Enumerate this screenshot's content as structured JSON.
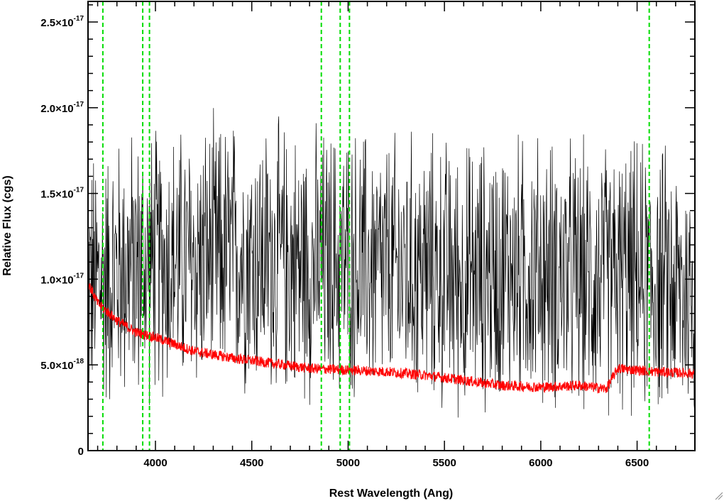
{
  "chart_data": {
    "type": "line",
    "title": "",
    "xlabel": "Rest Wavelength (Ang)",
    "ylabel": "Relative Flux (cgs)",
    "xlim": [
      3650,
      6800
    ],
    "ylim": [
      0,
      2.62e-17
    ],
    "x_ticks": [
      {
        "value": 4000,
        "label": "4000"
      },
      {
        "value": 4500,
        "label": "4500"
      },
      {
        "value": 5000,
        "label": "5000"
      },
      {
        "value": 5500,
        "label": "5500"
      },
      {
        "value": 6000,
        "label": "6000"
      },
      {
        "value": 6500,
        "label": "6500"
      }
    ],
    "y_ticks": [
      {
        "value": 0,
        "mantissa": "0",
        "exponent": ""
      },
      {
        "value": 5e-18,
        "mantissa": "5.0×10",
        "exponent": "-18"
      },
      {
        "value": 1e-17,
        "mantissa": "1.0×10",
        "exponent": "-17"
      },
      {
        "value": 1.5e-17,
        "mantissa": "1.5×10",
        "exponent": "-17"
      },
      {
        "value": 2e-17,
        "mantissa": "2.0×10",
        "exponent": "-17"
      },
      {
        "value": 2.5e-17,
        "mantissa": "2.5×10",
        "exponent": "-17"
      }
    ],
    "grid": false,
    "vlines": [
      {
        "x": 3727,
        "style": "dashed",
        "color": "#00dd00"
      },
      {
        "x": 3934,
        "style": "dashed",
        "color": "#00dd00"
      },
      {
        "x": 3969,
        "style": "dashed",
        "color": "#00dd00"
      },
      {
        "x": 4861,
        "style": "dashed",
        "color": "#00dd00"
      },
      {
        "x": 4959,
        "style": "dashed",
        "color": "#00dd00"
      },
      {
        "x": 5007,
        "style": "dashed",
        "color": "#00dd00"
      },
      {
        "x": 6563,
        "style": "dashed",
        "color": "#00dd00"
      }
    ],
    "series": [
      {
        "color": "#000000",
        "style": "noisy spectrum",
        "x": [
          3650,
          3800,
          4000,
          4200,
          4400,
          4600,
          4800,
          5000,
          5200,
          5400,
          5600,
          5800,
          6000,
          6200,
          6400,
          6600,
          6800
        ],
        "y": [
          9.5e-18,
          1.05e-17,
          1.1e-17,
          1.1e-17,
          1.15e-17,
          1.12e-17,
          1.08e-17,
          1.1e-17,
          1.05e-17,
          1.05e-17,
          1e-17,
          1.05e-17,
          1.05e-17,
          1e-17,
          1e-17,
          1e-17,
          9e-18
        ]
      },
      {
        "color": "#ff0000",
        "style": "error spectrum",
        "x": [
          3650,
          3700,
          3800,
          3900,
          4000,
          4200,
          4400,
          4600,
          4800,
          5000,
          5200,
          5400,
          5600,
          5800,
          6000,
          6200,
          6340,
          6400,
          6600,
          6800
        ],
        "y": [
          9.8e-18,
          8.6e-18,
          7.6e-18,
          6.9e-18,
          6.6e-18,
          5.8e-18,
          5.4e-18,
          5.1e-18,
          4.8e-18,
          4.7e-18,
          4.6e-18,
          4.4e-18,
          4.1e-18,
          3.8e-18,
          3.7e-18,
          3.8e-18,
          3.6e-18,
          4.8e-18,
          4.6e-18,
          4.5e-18
        ]
      }
    ]
  },
  "colors": {
    "black_spectrum": "#000000",
    "red_spectrum": "#ff0000",
    "line_markers": "#00dd00"
  }
}
